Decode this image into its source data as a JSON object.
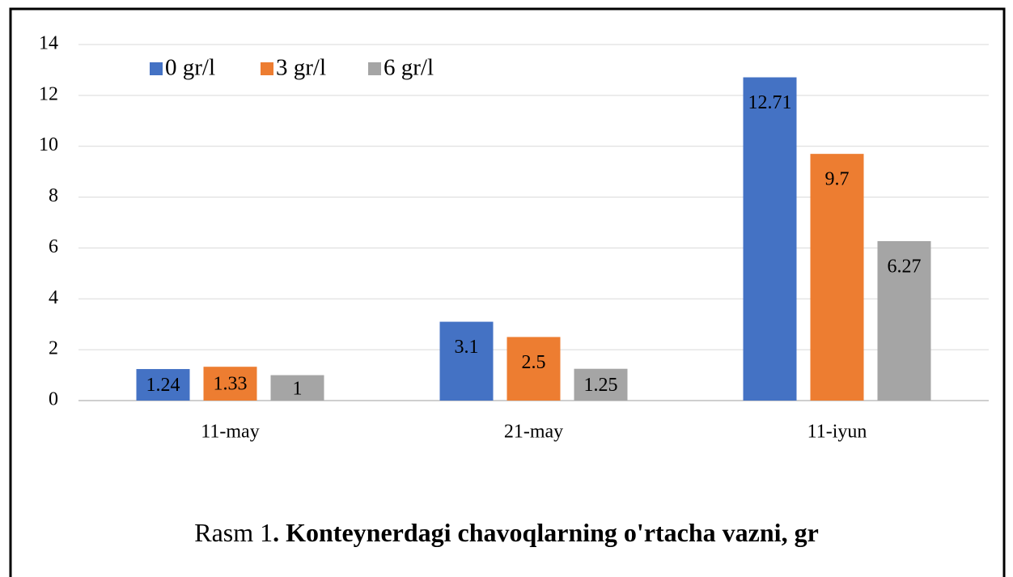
{
  "chart_data": {
    "type": "bar",
    "categories": [
      "11-may",
      "21-may",
      "11-iyun"
    ],
    "series": [
      {
        "name": "0 gr/l",
        "color": "#4472c4",
        "values": [
          1.24,
          3.1,
          12.71
        ]
      },
      {
        "name": "3 gr/l",
        "color": "#ed7d31",
        "values": [
          1.33,
          2.5,
          9.7
        ]
      },
      {
        "name": "6 gr/l",
        "color": "#a5a5a5",
        "values": [
          1,
          1.25,
          6.27
        ]
      }
    ],
    "ylim": [
      0,
      14
    ],
    "yticks": [
      0,
      2,
      4,
      6,
      8,
      10,
      12,
      14
    ],
    "grid": true,
    "legend": "top-left",
    "caption": {
      "prefix": "Rasm 1",
      "text": ". Konteynerdagi chavoqlarning o'rtacha vazni, gr"
    }
  }
}
